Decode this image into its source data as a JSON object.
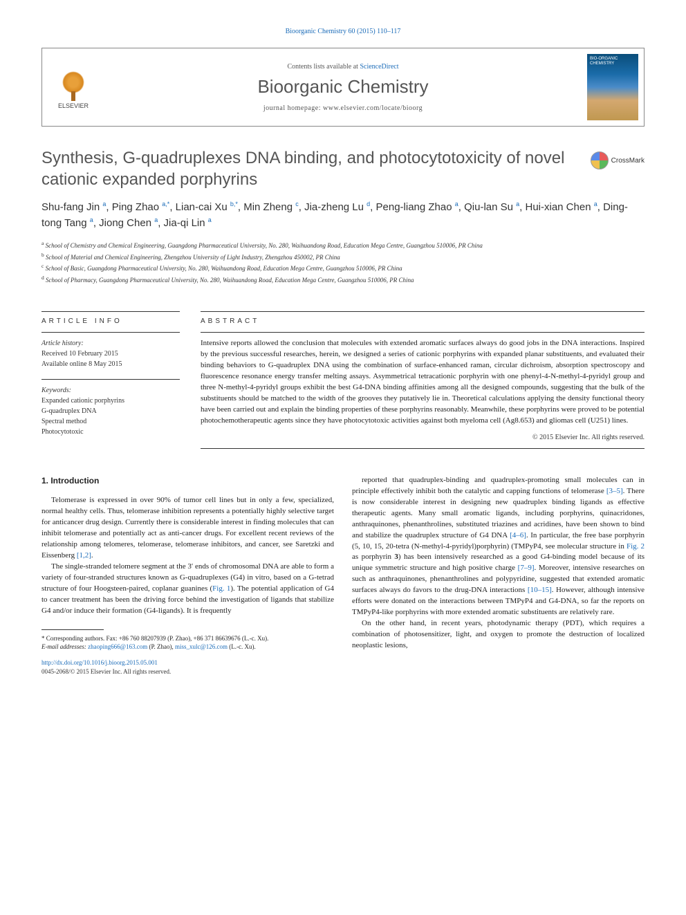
{
  "citation": "Bioorganic Chemistry 60 (2015) 110–117",
  "header": {
    "contents_prefix": "Contents lists available at ",
    "contents_link": "ScienceDirect",
    "journal": "Bioorganic Chemistry",
    "homepage_prefix": "journal homepage: ",
    "homepage": "www.elsevier.com/locate/bioorg",
    "publisher": "ELSEVIER"
  },
  "crossmark": "CrossMark",
  "title": "Synthesis, G-quadruplexes DNA binding, and photocytotoxicity of novel cationic expanded porphyrins",
  "authors_html": "Shu-fang Jin <sup>a</sup>, Ping Zhao <sup>a,*</sup>, Lian-cai Xu <sup>b,*</sup>, Min Zheng <sup>c</sup>, Jia-zheng Lu <sup>d</sup>, Peng-liang Zhao <sup>a</sup>, Qiu-lan Su <sup>a</sup>, Hui-xian Chen <sup>a</sup>, Ding-tong Tang <sup>a</sup>, Jiong Chen <sup>a</sup>, Jia-qi Lin <sup>a</sup>",
  "affiliations": [
    {
      "sup": "a",
      "text": "School of Chemistry and Chemical Engineering, Guangdong Pharmaceutical University, No. 280, Waihuandong Road, Education Mega Centre, Guangzhou 510006, PR China"
    },
    {
      "sup": "b",
      "text": "School of Material and Chemical Engineering, Zhengzhou University of Light Industry, Zhengzhou 450002, PR China"
    },
    {
      "sup": "c",
      "text": "School of Basic, Guangdong Pharmaceutical University, No. 280, Waihuandong Road, Education Mega Centre, Guangzhou 510006, PR China"
    },
    {
      "sup": "d",
      "text": "School of Pharmacy, Guangdong Pharmaceutical University, No. 280, Waihuandong Road, Education Mega Centre, Guangzhou 510006, PR China"
    }
  ],
  "info": {
    "article_info_label": "ARTICLE INFO",
    "abstract_label": "ABSTRACT",
    "history_label": "Article history:",
    "received": "Received 10 February 2015",
    "online": "Available online 8 May 2015",
    "keywords_label": "Keywords:",
    "keywords": [
      "Expanded cationic porphyrins",
      "G-quadruplex DNA",
      "Spectral method",
      "Photocytotoxic"
    ]
  },
  "abstract": "Intensive reports allowed the conclusion that molecules with extended aromatic surfaces always do good jobs in the DNA interactions. Inspired by the previous successful researches, herein, we designed a series of cationic porphyrins with expanded planar substituents, and evaluated their binding behaviors to G-quadruplex DNA using the combination of surface-enhanced raman, circular dichroism, absorption spectroscopy and fluorescence resonance energy transfer melting assays. Asymmetrical tetracationic porphyrin with one phenyl-4-N-methyl-4-pyridyl group and three N-methyl-4-pyridyl groups exhibit the best G4-DNA binding affinities among all the designed compounds, suggesting that the bulk of the substituents should be matched to the width of the grooves they putatively lie in. Theoretical calculations applying the density functional theory have been carried out and explain the binding properties of these porphyrins reasonably. Meanwhile, these porphyrins were proved to be potential photochemotherapeutic agents since they have photocytotoxic activities against both myeloma cell (Ag8.653) and gliomas cell (U251) lines.",
  "copyright": "© 2015 Elsevier Inc. All rights reserved.",
  "intro_heading": "1. Introduction",
  "col1": {
    "p1": "Telomerase is expressed in over 90% of tumor cell lines but in only a few, specialized, normal healthy cells. Thus, telomerase inhibition represents a potentially highly selective target for anticancer drug design. Currently there is considerable interest in finding molecules that can inhibit telomerase and potentially act as anti-cancer drugs. For excellent recent reviews of the relationship among telomeres, telomerase, telomerase inhibitors, and cancer, see Saretzki and Eissenberg ",
    "p1_ref": "[1,2]",
    "p1_end": ".",
    "p2a": "The single-stranded telomere segment at the 3′ ends of chromosomal DNA are able to form a variety of four-stranded structures known as G-quadruplexes (G4) in vitro, based on a G-tetrad structure of four Hoogsteen-paired, coplanar guanines (",
    "p2_fig": "Fig. 1",
    "p2b": "). The potential application of G4 to cancer treatment has been the driving force behind the investigation of ligands that stabilize G4 and/or induce their formation (G4-ligands). It is frequently"
  },
  "col2": {
    "p1a": "reported that quadruplex-binding and quadruplex-promoting small molecules can in principle effectively inhibit both the catalytic and capping functions of telomerase ",
    "p1_ref1": "[3–5]",
    "p1b": ". There is now considerable interest in designing new quadruplex binding ligands as effective therapeutic agents. Many small aromatic ligands, including porphyrins, quinacridones, anthraquinones, phenanthrolines, substituted triazines and acridines, have been shown to bind and stabilize the quadruplex structure of G4 DNA ",
    "p1_ref2": "[4–6]",
    "p1c": ". In particular, the free base porphyrin (5, 10, 15, 20-tetra (N-methyl-4-pyridyl)porphyrin) (TMPyP4, see molecular structure in ",
    "p1_fig": "Fig. 2",
    "p1d": " as porphyrin ",
    "p1_bold": "3",
    "p1e": ") has been intensively researched as a good G4-binding model because of its unique symmetric structure and high positive charge ",
    "p1_ref3": "[7–9]",
    "p1f": ". Moreover, intensive researches on such as anthraquinones, phenanthrolines and polypyridine, suggested that extended aromatic surfaces always do favors to the drug-DNA interactions ",
    "p1_ref4": "[10–15]",
    "p1g": ". However, although intensive efforts were donated on the interactions between TMPyP4 and G4-DNA, so far the reports on TMPyP4-like porphyrins with more extended aromatic substituents are relatively rare.",
    "p2": "On the other hand, in recent years, photodynamic therapy (PDT), which requires a combination of photosensitizer, light, and oxygen to promote the destruction of localized neoplastic lesions,"
  },
  "footnotes": {
    "corr": "* Corresponding authors. Fax: +86 760 88207939 (P. Zhao), +86 371 86639676 (L.-c. Xu).",
    "email_label": "E-mail addresses:",
    "email1": "zhaoping666@163.com",
    "email1_who": " (P. Zhao), ",
    "email2": "miss_xulc@126.com",
    "email2_who": " (L.-c. Xu)."
  },
  "doi": {
    "url": "http://dx.doi.org/10.1016/j.bioorg.2015.05.001",
    "issn": "0045-2068/© 2015 Elsevier Inc. All rights reserved."
  }
}
